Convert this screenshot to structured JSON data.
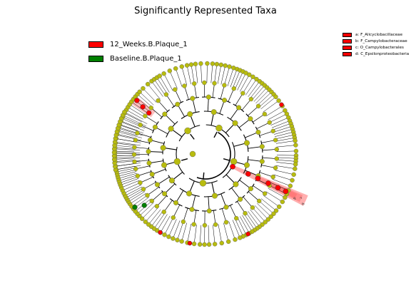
{
  "title": "Significantly Represented Taxa",
  "groups": [
    {
      "name": "12_Weeks.B.Plaque_1",
      "color": "#ff0000"
    },
    {
      "name": "Baseline.B.Plaque_1",
      "color": "#008000"
    }
  ],
  "taxa_legend": [
    {
      "letter": "a",
      "label": "a: F_Alicyclobacillaceae"
    },
    {
      "letter": "b",
      "label": "b: F_Campylobacteraceae"
    },
    {
      "letter": "c",
      "label": "c: O_Campylobacterales"
    },
    {
      "letter": "d",
      "label": "d: C_Epsilonproteobacteria"
    }
  ],
  "clade_labels": [
    "d",
    "c",
    "b"
  ],
  "colors": {
    "node": "#b8bc0f",
    "enriched": "#ff0000",
    "baseline": "#008000",
    "highlight": "#ff6e6e"
  }
}
